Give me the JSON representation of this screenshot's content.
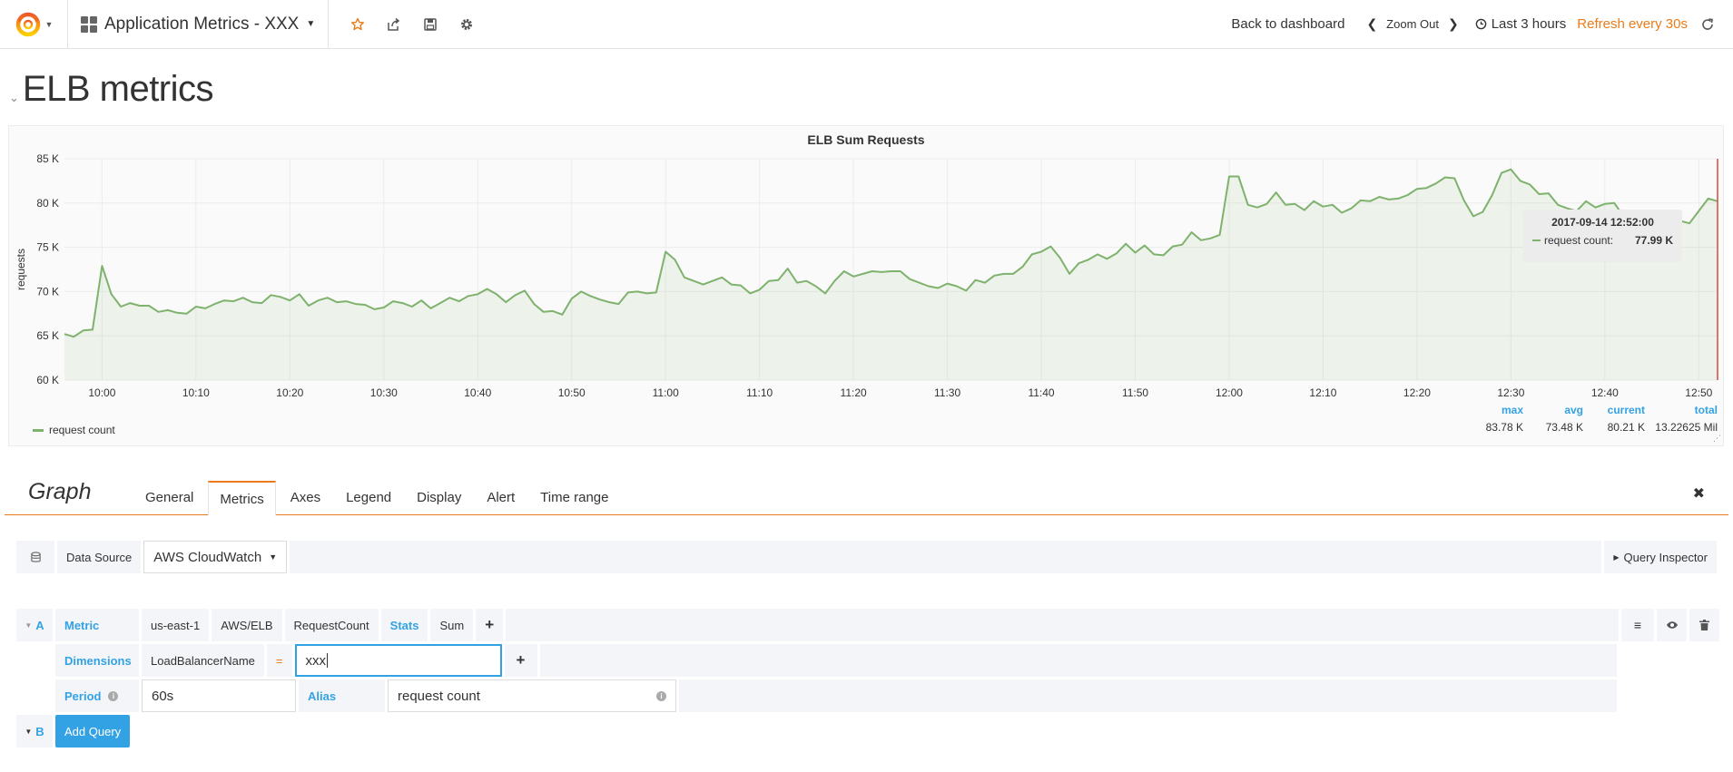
{
  "navbar": {
    "dashboard_title": "Application Metrics - XXX",
    "back_label": "Back to dashboard",
    "zoom_label": "Zoom Out",
    "time_range": "Last 3 hours",
    "refresh_label": "Refresh every 30s"
  },
  "row": {
    "title": "ELB metrics"
  },
  "panel": {
    "title": "ELB Sum Requests",
    "legend_series": "request count",
    "legend_stats": {
      "max_label": "max",
      "avg_label": "avg",
      "current_label": "current",
      "total_label": "total",
      "max": "83.78 K",
      "avg": "73.48 K",
      "current": "80.21 K",
      "total": "13.22625 Mil"
    },
    "tooltip": {
      "time": "2017-09-14 12:52:00",
      "series": "request count:",
      "value": "77.99 K"
    }
  },
  "chart_data": {
    "type": "area",
    "title": "ELB Sum Requests",
    "ylabel": "requests",
    "ylim": [
      60000,
      85000
    ],
    "y_ticks": [
      "60 K",
      "65 K",
      "70 K",
      "75 K",
      "80 K",
      "85 K"
    ],
    "x_ticks": [
      "10:00",
      "10:10",
      "10:20",
      "10:30",
      "10:40",
      "10:50",
      "11:00",
      "11:10",
      "11:20",
      "11:30",
      "11:40",
      "11:50",
      "12:00",
      "12:10",
      "12:20",
      "12:30",
      "12:40",
      "12:50"
    ],
    "x_start_minutes_before_10": 4,
    "series": [
      {
        "name": "request count",
        "color": "#7eb26d",
        "values": [
          65200,
          64900,
          65600,
          65700,
          72900,
          69700,
          68300,
          68700,
          68400,
          68400,
          67700,
          67900,
          67600,
          67500,
          68300,
          68100,
          68600,
          69000,
          68900,
          69300,
          68800,
          68700,
          69600,
          69400,
          69000,
          69700,
          68400,
          69000,
          69300,
          68800,
          68900,
          68600,
          68500,
          68000,
          68200,
          68900,
          68700,
          68300,
          69000,
          68100,
          68700,
          69300,
          68900,
          69500,
          69700,
          70300,
          69700,
          68800,
          69600,
          70100,
          68600,
          67700,
          67800,
          67400,
          69200,
          70000,
          69500,
          69100,
          68800,
          68600,
          69900,
          70000,
          69800,
          69900,
          74500,
          73600,
          71600,
          71200,
          70800,
          71200,
          71600,
          70800,
          70700,
          69800,
          70200,
          71200,
          71300,
          72600,
          71000,
          71200,
          70600,
          69800,
          71200,
          72300,
          71700,
          72000,
          72300,
          72200,
          72300,
          72300,
          71400,
          71000,
          70600,
          70400,
          70900,
          70600,
          70100,
          71300,
          71000,
          71800,
          72000,
          72000,
          72800,
          74200,
          74500,
          75100,
          73800,
          72000,
          73200,
          73600,
          74200,
          73700,
          74300,
          75400,
          74400,
          75200,
          74200,
          74100,
          75100,
          75300,
          76700,
          75800,
          76000,
          76400,
          83000,
          83000,
          79800,
          79500,
          79900,
          81200,
          79800,
          79900,
          79200,
          80200,
          79600,
          79800,
          78900,
          79400,
          80300,
          80200,
          80700,
          80400,
          80500,
          80900,
          81600,
          81700,
          82200,
          82900,
          82800,
          80300,
          78500,
          79000,
          80900,
          83400,
          83800,
          82500,
          82100,
          81000,
          81100,
          79800,
          79400,
          79100,
          80200,
          79500,
          79900,
          80000,
          78500,
          77900,
          77800,
          78300,
          79000,
          78100,
          77990,
          77700,
          79100,
          80500,
          80210
        ]
      }
    ],
    "marker_label": "12:52",
    "grid": true,
    "legend_position": "bottom-left"
  },
  "editor": {
    "title": "Graph",
    "tabs": [
      {
        "label": "General"
      },
      {
        "label": "Metrics",
        "active": true
      },
      {
        "label": "Axes"
      },
      {
        "label": "Legend"
      },
      {
        "label": "Display"
      },
      {
        "label": "Alert"
      },
      {
        "label": "Time range"
      }
    ],
    "datasource_label": "Data Source",
    "datasource_value": "AWS CloudWatch",
    "query_inspector": "Query Inspector",
    "query_a": {
      "ref": "A",
      "metric_label": "Metric",
      "region": "us-east-1",
      "namespace": "AWS/ELB",
      "metric": "RequestCount",
      "stats_label": "Stats",
      "stat": "Sum",
      "dimensions_label": "Dimensions",
      "dimension_key": "LoadBalancerName",
      "operator": "=",
      "dimension_value": "xxx",
      "period_label": "Period",
      "period_value": "60s",
      "alias_label": "Alias",
      "alias_value": "request count"
    },
    "query_b": {
      "ref": "B",
      "add_label": "Add Query"
    }
  }
}
